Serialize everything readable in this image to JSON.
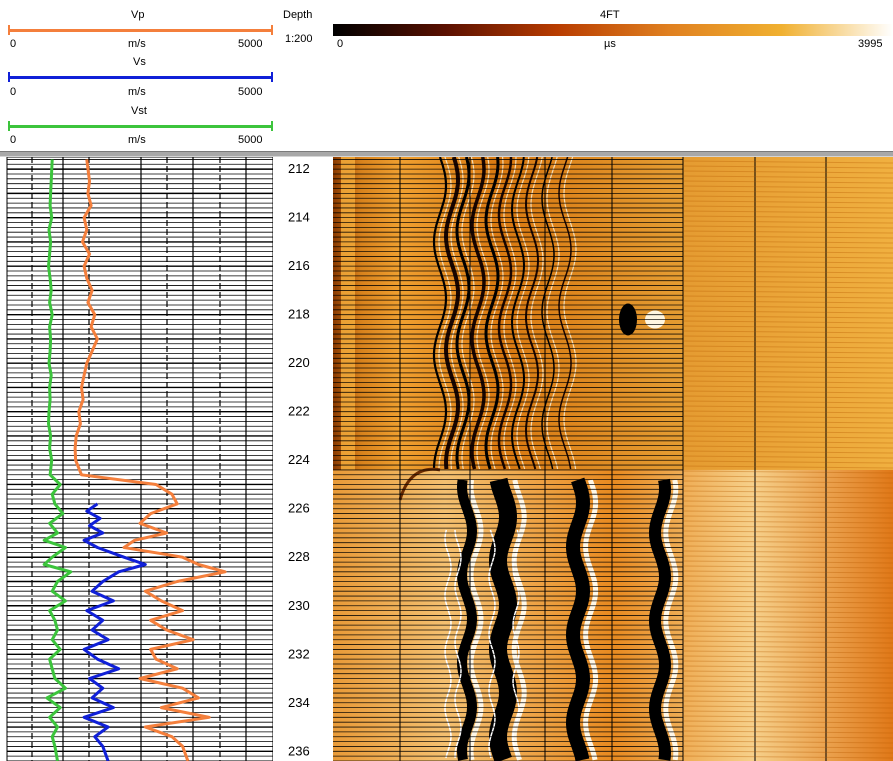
{
  "header": {
    "curves": [
      {
        "name": "Vp",
        "unit": "m/s",
        "min": "0",
        "max": "5000",
        "color": "#f47f3c"
      },
      {
        "name": "Vs",
        "unit": "m/s",
        "min": "0",
        "max": "5000",
        "color": "#1020d8"
      },
      {
        "name": "Vst",
        "unit": "m/s",
        "min": "0",
        "max": "5000",
        "color": "#3cc43c"
      }
    ],
    "depth": {
      "title": "Depth",
      "scale": "1:200"
    },
    "image": {
      "title": "4FT",
      "unit": "µs",
      "min": "0",
      "max": "3995"
    }
  },
  "chart_data": {
    "type": "line",
    "title": "",
    "depth_range": [
      211.5,
      236.4
    ],
    "depth_tick_labels": [
      "212",
      "214",
      "216",
      "218",
      "220",
      "222",
      "224",
      "226",
      "228",
      "230",
      "232",
      "234",
      "236"
    ],
    "x_range": [
      0,
      5000
    ],
    "series": [
      {
        "name": "Vp",
        "color": "#f47f3c",
        "depth": [
          211.6,
          212.5,
          213.0,
          213.5,
          214.0,
          214.5,
          215.0,
          215.5,
          216.0,
          216.5,
          217.0,
          217.5,
          218.0,
          218.5,
          219.0,
          219.5,
          220.0,
          220.5,
          221.0,
          221.5,
          222.0,
          222.5,
          223.0,
          223.5,
          224.0,
          224.6,
          225.0,
          225.4,
          225.8,
          226.2,
          226.6,
          227.0,
          227.3,
          227.6,
          228.0,
          228.3,
          228.6,
          229.0,
          229.4,
          229.8,
          230.2,
          230.6,
          231.0,
          231.4,
          231.8,
          232.2,
          232.6,
          233.0,
          233.4,
          233.8,
          234.2,
          234.6,
          235.0,
          235.4,
          235.8,
          236.4
        ],
        "values": [
          1500,
          1550,
          1520,
          1580,
          1450,
          1500,
          1420,
          1550,
          1450,
          1500,
          1600,
          1520,
          1650,
          1580,
          1700,
          1600,
          1500,
          1450,
          1400,
          1430,
          1350,
          1380,
          1300,
          1280,
          1290,
          1400,
          2800,
          3100,
          3200,
          2700,
          2500,
          3000,
          2400,
          2200,
          3300,
          3600,
          4100,
          3200,
          2600,
          2900,
          3300,
          2700,
          3000,
          3500,
          2700,
          2800,
          3200,
          2500,
          3300,
          3600,
          2900,
          3800,
          2600,
          3100,
          3300,
          3400
        ]
      },
      {
        "name": "Vs",
        "color": "#1020d8",
        "depth": [
          225.8,
          226.1,
          226.4,
          226.7,
          227.0,
          227.3,
          227.6,
          228.0,
          228.3,
          228.6,
          229.0,
          229.4,
          229.8,
          230.2,
          230.6,
          231.0,
          231.4,
          231.8,
          232.2,
          232.6,
          233.0,
          233.4,
          233.8,
          234.2,
          234.6,
          235.0,
          235.4,
          235.8,
          236.4
        ],
        "values": [
          1700,
          1500,
          1750,
          1550,
          1800,
          1450,
          1700,
          2200,
          2600,
          2100,
          1800,
          1600,
          2000,
          1500,
          1800,
          1600,
          1900,
          1450,
          1700,
          2100,
          1550,
          1800,
          1600,
          2000,
          1450,
          1900,
          1650,
          1800,
          1900
        ]
      },
      {
        "name": "Vst",
        "color": "#3cc43c",
        "depth": [
          211.6,
          212.5,
          213.0,
          213.5,
          214.0,
          214.5,
          215.0,
          215.5,
          216.0,
          216.5,
          217.0,
          217.5,
          218.0,
          218.5,
          219.0,
          219.5,
          220.0,
          220.5,
          221.0,
          221.5,
          222.0,
          222.5,
          223.0,
          223.5,
          224.0,
          224.6,
          225.0,
          225.4,
          225.8,
          226.2,
          226.6,
          227.0,
          227.3,
          227.6,
          228.0,
          228.3,
          228.6,
          229.0,
          229.4,
          229.8,
          230.2,
          230.6,
          231.0,
          231.4,
          231.8,
          232.2,
          232.6,
          233.0,
          233.4,
          233.8,
          234.2,
          234.6,
          235.0,
          235.4,
          235.8,
          236.4
        ],
        "values": [
          850,
          830,
          820,
          810,
          840,
          790,
          820,
          800,
          780,
          810,
          830,
          800,
          850,
          800,
          820,
          810,
          790,
          830,
          800,
          810,
          790,
          780,
          820,
          800,
          840,
          810,
          1000,
          850,
          900,
          1050,
          800,
          950,
          700,
          1100,
          850,
          700,
          1200,
          950,
          850,
          1100,
          800,
          900,
          950,
          850,
          1000,
          800,
          850,
          900,
          1100,
          750,
          1000,
          800,
          950,
          850,
          900,
          950
        ]
      }
    ],
    "image_track": {
      "name": "4FT",
      "unit": "µs",
      "range": [
        0,
        3995
      ],
      "colormap": [
        "#000000",
        "#5a1000",
        "#b83c00",
        "#e08020",
        "#f0b030",
        "#ffffff"
      ]
    }
  }
}
